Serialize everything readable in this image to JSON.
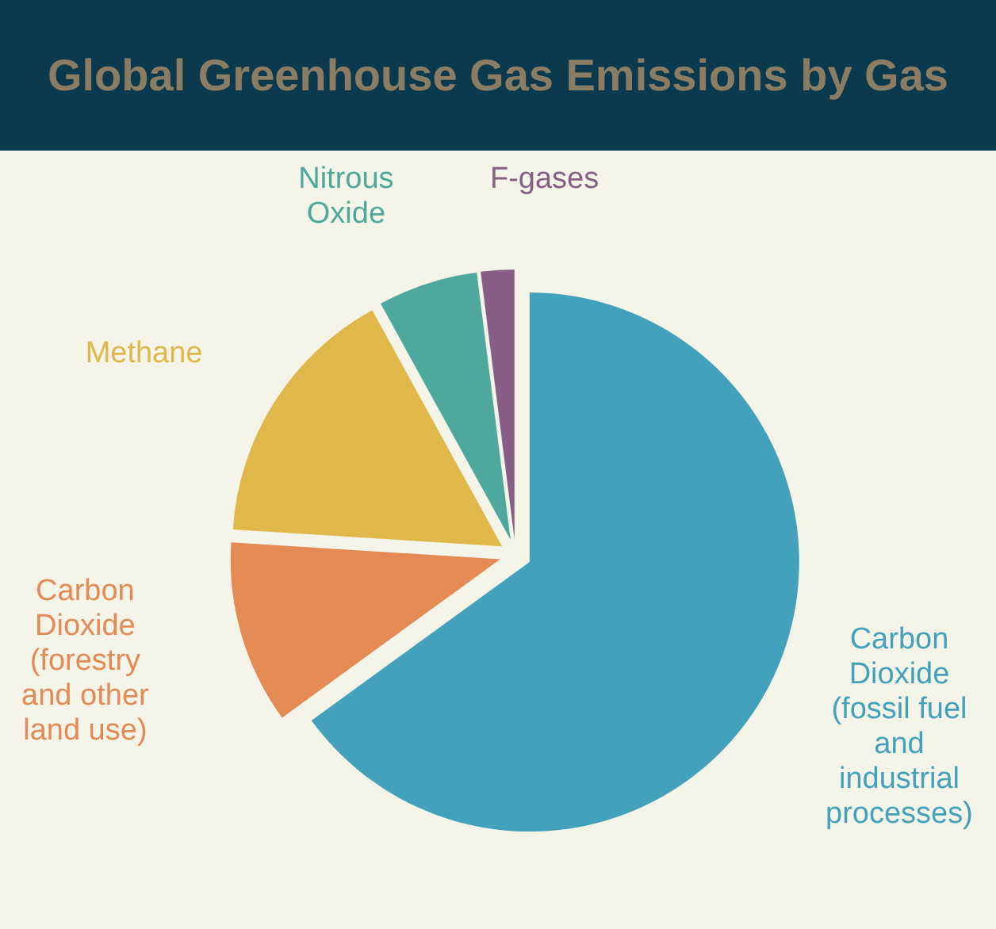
{
  "chart_data": {
    "type": "pie",
    "title": "Global Greenhouse Gas Emissions by Gas",
    "categories": [
      "Carbon Dioxide (fossil fuel and industrial processes)",
      "Carbon Dioxide (forestry and other land use)",
      "Methane",
      "Nitrous Oxide",
      "F-gases"
    ],
    "values": [
      65,
      11,
      16,
      6,
      2
    ],
    "colors": [
      "#43a1bb",
      "#e38a55",
      "#e0b84a",
      "#4ea89c",
      "#875e86"
    ]
  }
}
